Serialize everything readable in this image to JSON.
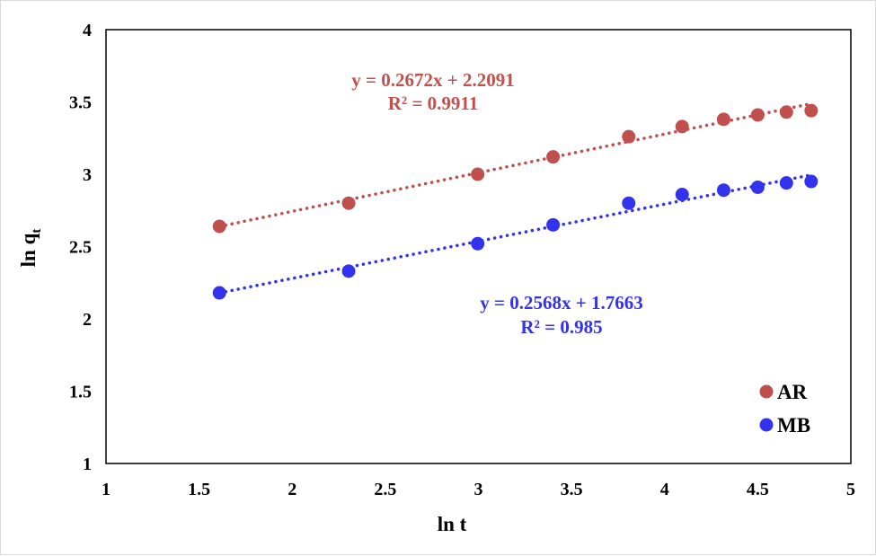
{
  "chart_data": {
    "type": "scatter",
    "xlabel": "ln t",
    "ylabel_main": "ln q",
    "ylabel_sub": "t",
    "xlim": [
      1,
      5
    ],
    "ylim": [
      1,
      4
    ],
    "x_ticks": [
      1,
      1.5,
      2,
      2.5,
      3,
      3.5,
      4,
      4.5,
      5
    ],
    "x_tick_labels": [
      "1",
      "1.5",
      "2",
      "2.5",
      "3",
      "3.5",
      "4",
      "4.5",
      "5"
    ],
    "y_ticks": [
      1,
      1.5,
      2,
      2.5,
      3,
      3.5,
      4
    ],
    "y_tick_labels": [
      "1",
      "1.5",
      "2",
      "2.5",
      "3",
      "3.5",
      "4"
    ],
    "grid": false,
    "legend_position": "bottom-right",
    "series": [
      {
        "name": "AR",
        "color": "#c0504d",
        "x": [
          1.609,
          2.303,
          2.996,
          3.401,
          3.807,
          4.094,
          4.317,
          4.5,
          4.654,
          4.787
        ],
        "y": [
          2.64,
          2.8,
          3.0,
          3.12,
          3.26,
          3.33,
          3.38,
          3.41,
          3.43,
          3.44
        ],
        "trendline": {
          "slope": 0.2672,
          "intercept": 2.2091,
          "style": "dotted"
        },
        "equation": "y = 0.2672x + 2.2091",
        "r2": "R² = 0.9911"
      },
      {
        "name": "MB",
        "color": "#3333ee",
        "x": [
          1.609,
          2.303,
          2.996,
          3.401,
          3.807,
          4.094,
          4.317,
          4.5,
          4.654,
          4.787
        ],
        "y": [
          2.18,
          2.33,
          2.52,
          2.65,
          2.8,
          2.86,
          2.89,
          2.91,
          2.94,
          2.95
        ],
        "trendline": {
          "slope": 0.2568,
          "intercept": 1.7663,
          "style": "dotted"
        },
        "equation": "y = 0.2568x + 1.7663",
        "r2": "R² = 0.985"
      }
    ]
  }
}
